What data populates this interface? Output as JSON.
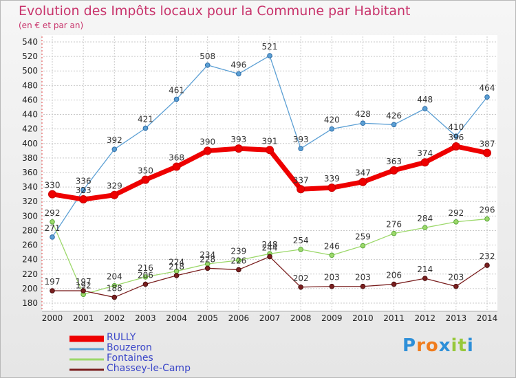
{
  "title": "Evolution des Impôts locaux pour la Commune par Habitant",
  "subtitle": "(en € et par an)",
  "logo": {
    "letters": [
      "P",
      "r",
      "o",
      "x",
      "i",
      "t",
      "i"
    ],
    "colors": [
      "#2d8fd8",
      "#f07c1d",
      "#f07c1d",
      "#2d8fd8",
      "#97c83a",
      "#97c83a",
      "#2d8fd8"
    ]
  },
  "chart_data": {
    "type": "line",
    "title": "Evolution des Impôts locaux pour la Commune par Habitant",
    "subtitle": "(en € et par an)",
    "xlabel": "",
    "ylabel": "",
    "ylim": [
      180,
      540
    ],
    "yticks": [
      180,
      200,
      220,
      240,
      260,
      280,
      300,
      320,
      340,
      360,
      380,
      400,
      420,
      440,
      460,
      480,
      500,
      520,
      540
    ],
    "categories": [
      "2000",
      "2001",
      "2002",
      "2003",
      "2004",
      "2005",
      "2006",
      "2007",
      "2008",
      "2009",
      "2010",
      "2011",
      "2012",
      "2013",
      "2014"
    ],
    "grid": true,
    "legend_position": "bottom-left",
    "series": [
      {
        "name": "RULLY",
        "color": "#ee0000",
        "values": [
          330,
          323,
          329,
          350,
          368,
          390,
          393,
          391,
          337,
          339,
          347,
          363,
          374,
          396,
          387
        ]
      },
      {
        "name": "Bouzeron",
        "color": "#5b9fd4",
        "values": [
          271,
          336,
          392,
          421,
          461,
          508,
          496,
          521,
          393,
          420,
          428,
          426,
          448,
          410,
          464
        ]
      },
      {
        "name": "Fontaines",
        "color": "#9cd86a",
        "values": [
          292,
          192,
          204,
          216,
          224,
          234,
          239,
          248,
          254,
          246,
          259,
          276,
          284,
          292,
          296
        ]
      },
      {
        "name": "Chassey-le-Camp",
        "color": "#7a1f1f",
        "values": [
          197,
          197,
          188,
          206,
          218,
          228,
          226,
          244,
          202,
          203,
          203,
          206,
          214,
          203,
          232
        ]
      }
    ]
  }
}
